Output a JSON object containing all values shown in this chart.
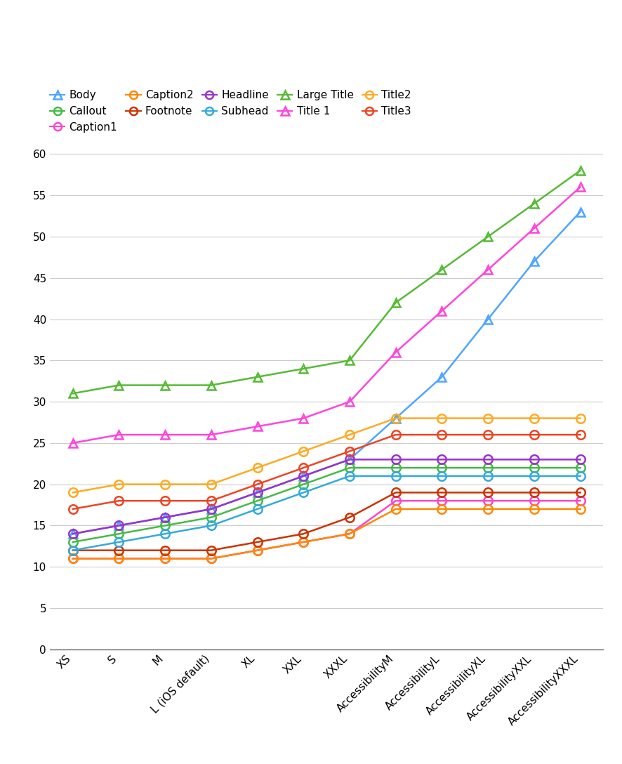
{
  "x_labels": [
    "XS",
    "S",
    "M",
    "L (iOS default)",
    "XL",
    "XXL",
    "XXXL",
    "AccessibilityM",
    "AccessibilityL",
    "AccessibilityXL",
    "AccessibilityXXL",
    "AccessibilityXXXL"
  ],
  "series": {
    "Body": {
      "values": [
        14,
        15,
        16,
        17,
        19,
        21,
        23,
        28,
        33,
        40,
        47,
        53
      ],
      "color": "#4da6ff",
      "marker": "^",
      "legend_label": "Body"
    },
    "Callout": {
      "values": [
        13,
        14,
        15,
        16,
        18,
        20,
        22,
        22,
        22,
        22,
        22,
        22
      ],
      "color": "#44bb44",
      "marker": "o",
      "legend_label": "Callout"
    },
    "Caption1": {
      "values": [
        11,
        11,
        11,
        11,
        12,
        13,
        14,
        18,
        18,
        18,
        18,
        18
      ],
      "color": "#ff44cc",
      "marker": "o",
      "legend_label": "Caption1"
    },
    "Caption2": {
      "values": [
        11,
        11,
        11,
        11,
        12,
        13,
        14,
        17,
        17,
        17,
        17,
        17
      ],
      "color": "#ff8800",
      "marker": "o",
      "legend_label": "Caption2"
    },
    "Footnote": {
      "values": [
        12,
        12,
        12,
        12,
        13,
        14,
        16,
        19,
        19,
        19,
        19,
        19
      ],
      "color": "#cc3300",
      "marker": "o",
      "legend_label": "Footnote"
    },
    "Headline": {
      "values": [
        14,
        15,
        16,
        17,
        19,
        21,
        23,
        23,
        23,
        23,
        23,
        23
      ],
      "color": "#9933cc",
      "marker": "o",
      "legend_label": "Headline"
    },
    "Subhead": {
      "values": [
        12,
        13,
        14,
        15,
        17,
        19,
        21,
        21,
        21,
        21,
        21,
        21
      ],
      "color": "#33aadd",
      "marker": "o",
      "legend_label": "Subhead"
    },
    "Large Title": {
      "values": [
        31,
        32,
        32,
        32,
        33,
        34,
        35,
        42,
        46,
        50,
        54,
        58
      ],
      "color": "#55bb33",
      "marker": "^",
      "legend_label": "Large Title"
    },
    "Title 1": {
      "values": [
        25,
        26,
        26,
        26,
        27,
        28,
        30,
        36,
        41,
        46,
        51,
        56
      ],
      "color": "#ff44dd",
      "marker": "^",
      "legend_label": "Title 1"
    },
    "Title2": {
      "values": [
        19,
        20,
        20,
        20,
        22,
        24,
        26,
        28,
        28,
        28,
        28,
        28
      ],
      "color": "#ffaa22",
      "marker": "o",
      "legend_label": "Title2"
    },
    "Title3": {
      "values": [
        17,
        18,
        18,
        18,
        20,
        22,
        24,
        26,
        26,
        26,
        26,
        26
      ],
      "color": "#ee4422",
      "marker": "o",
      "legend_label": "Title3"
    }
  },
  "legend_order": [
    "Body",
    "Callout",
    "Caption1",
    "Caption2",
    "Footnote",
    "Headline",
    "Subhead",
    "Large Title",
    "Title 1",
    "Title2",
    "Title3"
  ],
  "ylim": [
    0,
    62
  ],
  "yticks": [
    0,
    5,
    10,
    15,
    20,
    25,
    30,
    35,
    40,
    45,
    50,
    55,
    60
  ],
  "background_color": "#ffffff",
  "grid_color": "#cccccc",
  "figsize": [
    8.86,
    10.88
  ],
  "dpi": 100
}
